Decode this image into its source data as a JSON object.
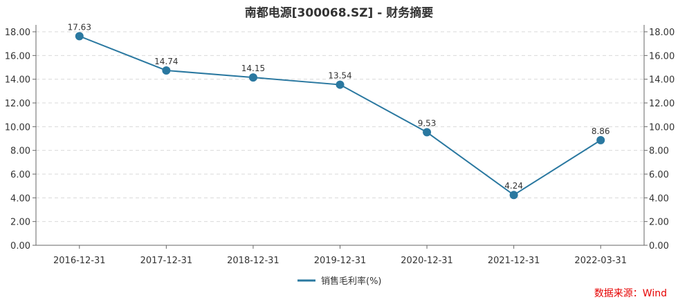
{
  "chart_data": {
    "type": "line",
    "title": "南都电源[300068.SZ] - 财务摘要",
    "categories": [
      "2016-12-31",
      "2017-12-31",
      "2018-12-31",
      "2019-12-31",
      "2020-12-31",
      "2021-12-31",
      "2022-03-31"
    ],
    "series": [
      {
        "name": "销售毛利率(%)",
        "values": [
          17.63,
          14.74,
          14.15,
          13.54,
          9.53,
          4.24,
          8.86
        ],
        "color": "#2a78a0"
      }
    ],
    "value_labels": [
      "17.63",
      "14.74",
      "14.15",
      "13.54",
      "9.53",
      "4.24",
      "8.86"
    ],
    "ylim": [
      0,
      18
    ],
    "y_ticks": [
      "0.00",
      "2.00",
      "4.00",
      "6.00",
      "8.00",
      "10.00",
      "12.00",
      "14.00",
      "16.00",
      "18.00"
    ],
    "y2_ticks": [
      "0.00",
      "2.00",
      "4.00",
      "6.00",
      "8.00",
      "10.00",
      "12.00",
      "14.00",
      "16.00",
      "18.00"
    ],
    "grid": "dashed-horizontal",
    "legend_position": "bottom-center"
  },
  "source_text": "数据来源：Wind"
}
